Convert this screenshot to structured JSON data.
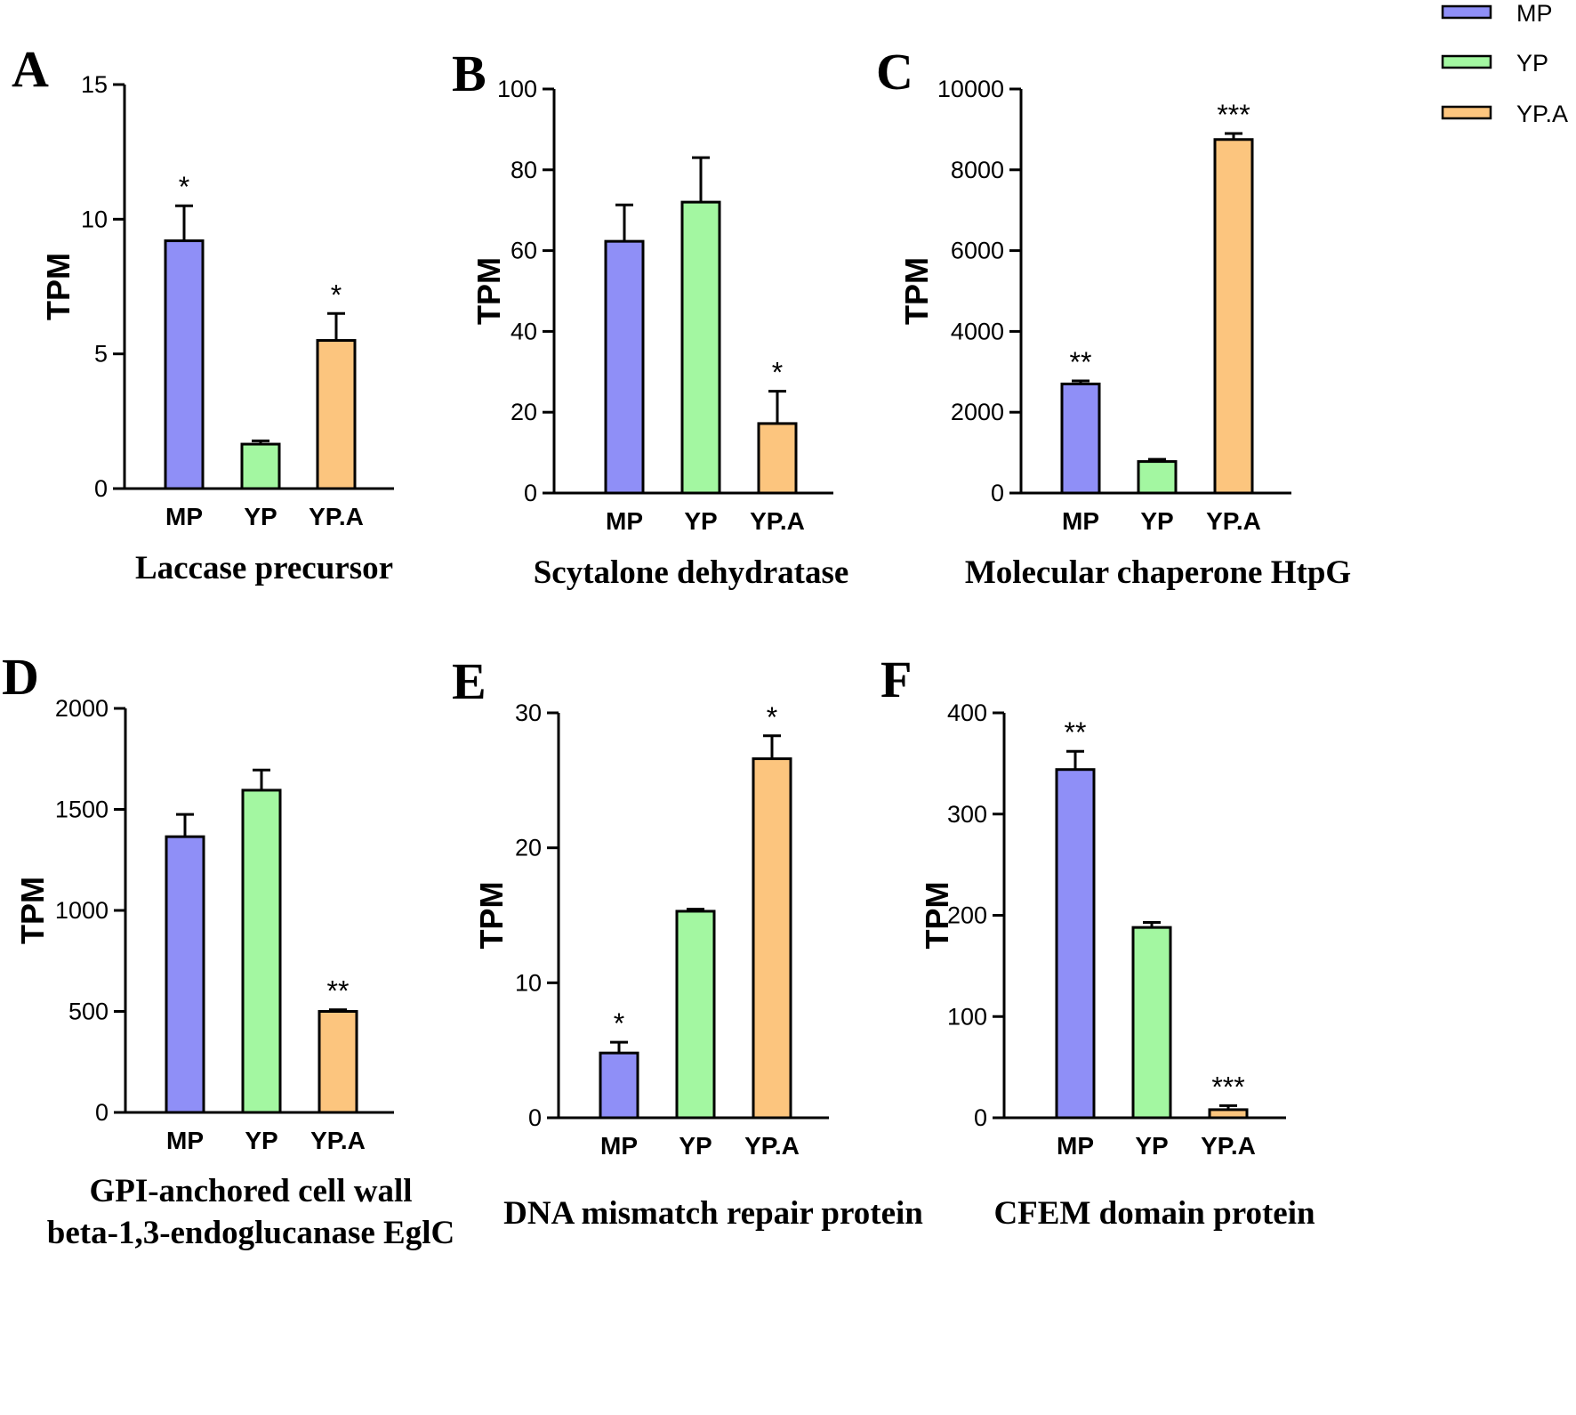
{
  "colors": {
    "MP": "#8f8ff7",
    "YP": "#a3f7a1",
    "YP.A": "#fcc57e"
  },
  "legend": {
    "items": [
      "MP",
      "YP",
      "YP.A"
    ]
  },
  "chart_data": [
    {
      "panel": "A",
      "type": "bar",
      "title": [
        "Laccase precursor"
      ],
      "ylabel": "TPM",
      "categories": [
        "MP",
        "YP",
        "YP.A"
      ],
      "values": [
        9.2,
        1.65,
        5.5
      ],
      "errors": [
        1.3,
        0.12,
        1.0
      ],
      "significance": [
        "*",
        "",
        "*"
      ],
      "ylim": [
        0,
        15
      ],
      "yticks": [
        0,
        5,
        10,
        15
      ],
      "tick_labels": [
        "0",
        "5",
        "10",
        "15"
      ]
    },
    {
      "panel": "B",
      "type": "bar",
      "title": [
        "Scytalone dehydratase"
      ],
      "ylabel": "TPM",
      "categories": [
        "MP",
        "YP",
        "YP.A"
      ],
      "values": [
        62.3,
        72,
        17.2
      ],
      "errors": [
        9,
        11,
        8
      ],
      "significance": [
        "",
        "",
        "*"
      ],
      "ylim": [
        0,
        100
      ],
      "yticks": [
        0,
        20,
        40,
        60,
        80,
        100
      ],
      "tick_labels": [
        "0",
        "20",
        "40",
        "60",
        "80",
        "100"
      ]
    },
    {
      "panel": "C",
      "type": "bar",
      "title": [
        "Molecular chaperone HtpG"
      ],
      "ylabel": "TPM",
      "categories": [
        "MP",
        "YP",
        "YP.A"
      ],
      "values": [
        2700,
        780,
        8750
      ],
      "errors": [
        75,
        55,
        150
      ],
      "significance": [
        "**",
        "",
        "***"
      ],
      "ylim": [
        0,
        10000
      ],
      "yticks": [
        0,
        2000,
        4000,
        6000,
        8000,
        10000
      ],
      "tick_labels": [
        "0",
        "2000",
        "4000",
        "6000",
        "8000",
        "10000"
      ]
    },
    {
      "panel": "D",
      "type": "bar",
      "title": [
        "GPI-anchored cell wall",
        "beta-1,3-endoglucanase EglC"
      ],
      "ylabel": "TPM",
      "categories": [
        "MP",
        "YP",
        "YP.A"
      ],
      "values": [
        1365,
        1595,
        500
      ],
      "errors": [
        110,
        100,
        8
      ],
      "significance": [
        "",
        "",
        "**"
      ],
      "ylim": [
        0,
        2000
      ],
      "yticks": [
        0,
        500,
        1000,
        1500,
        2000
      ],
      "tick_labels": [
        "0",
        "500",
        "1000",
        "1500",
        "2000"
      ]
    },
    {
      "panel": "E",
      "type": "bar",
      "title": [
        "DNA mismatch repair protein"
      ],
      "ylabel": "TPM",
      "categories": [
        "MP",
        "YP",
        "YP.A"
      ],
      "values": [
        4.8,
        15.3,
        26.6
      ],
      "errors": [
        0.8,
        0.15,
        1.7
      ],
      "significance": [
        "*",
        "",
        "*"
      ],
      "ylim": [
        0,
        30
      ],
      "yticks": [
        0,
        10,
        20,
        30
      ],
      "tick_labels": [
        "0",
        "10",
        "20",
        "30"
      ]
    },
    {
      "panel": "F",
      "type": "bar",
      "title": [
        "CFEM domain protein"
      ],
      "ylabel": "TPM",
      "categories": [
        "MP",
        "YP",
        "YP.A"
      ],
      "values": [
        344,
        188,
        8
      ],
      "errors": [
        18,
        5,
        4
      ],
      "significance": [
        "**",
        "",
        "***"
      ],
      "ylim": [
        0,
        400
      ],
      "yticks": [
        0,
        100,
        200,
        300,
        400
      ],
      "tick_labels": [
        "0",
        "100",
        "200",
        "300",
        "400"
      ]
    }
  ]
}
